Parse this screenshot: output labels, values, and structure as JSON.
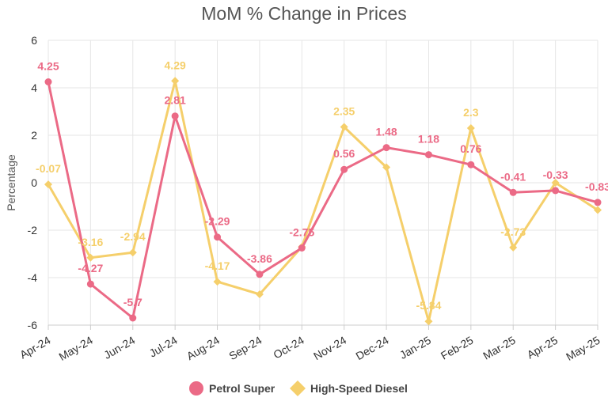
{
  "chart_data": {
    "type": "line",
    "title": "MoM % Change in Prices",
    "xlabel": "",
    "ylabel": "Percentage",
    "categories": [
      "Apr-24",
      "May-24",
      "Jun-24",
      "Jul-24",
      "Aug-24",
      "Sep-24",
      "Oct-24",
      "Nov-24",
      "Dec-24",
      "Jan-25",
      "Feb-25",
      "Mar-25",
      "Apr-25",
      "May-25"
    ],
    "ylim": [
      -6,
      6
    ],
    "yticks": [
      6,
      4,
      2,
      0,
      -2,
      -4,
      -6
    ],
    "grid": true,
    "legend_position": "bottom",
    "series": [
      {
        "name": "High-Speed Diesel",
        "color": "#f5cf6b",
        "marker": "diamond",
        "values": [
          -0.07,
          -3.16,
          -2.94,
          4.29,
          -4.17,
          -4.7,
          -2.7,
          2.35,
          0.65,
          -5.84,
          2.3,
          -2.73,
          0.0,
          -1.15
        ],
        "labels": [
          "-0.07",
          "-3.16",
          "-2.94",
          "4.29",
          "-4.17",
          "",
          "",
          "2.35",
          "",
          "-5.84",
          "2.3",
          "-2.73",
          "",
          ""
        ]
      },
      {
        "name": "Petrol Super",
        "color": "#eb6a86",
        "marker": "circle",
        "values": [
          4.25,
          -4.27,
          -5.7,
          2.81,
          -2.29,
          -3.86,
          -2.75,
          0.56,
          1.48,
          1.18,
          0.76,
          -0.41,
          -0.33,
          -0.83
        ],
        "labels": [
          "4.25",
          "-4.27",
          "-5.7",
          "2.81",
          "-2.29",
          "-3.86",
          "-2.75",
          "0.56",
          "1.48",
          "1.18",
          "0.76",
          "-0.41",
          "-0.33",
          "-0.83"
        ]
      }
    ]
  }
}
